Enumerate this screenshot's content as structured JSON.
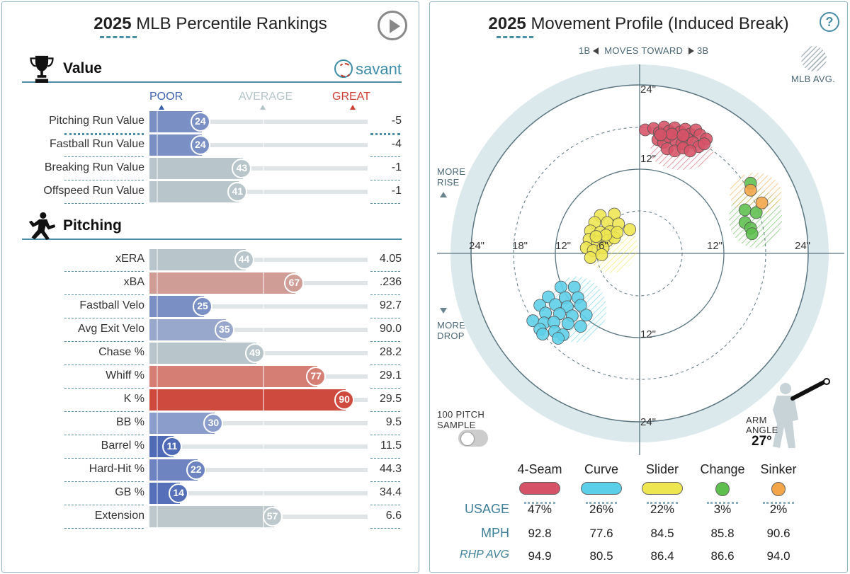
{
  "left": {
    "title_year": "2025",
    "title_rest": "MLB Percentile Rankings",
    "value_section": {
      "label": "Value",
      "brand": "savant",
      "scale": {
        "poor": "POOR",
        "average": "AVERAGE",
        "great": "GREAT"
      },
      "rows": [
        {
          "label": "Pitching Run Value",
          "percentile": 24,
          "value": "-5",
          "color": "#7a8fc4"
        },
        {
          "label": "Fastball Run Value",
          "percentile": 24,
          "value": "-4",
          "color": "#7a8fc4"
        },
        {
          "label": "Breaking Run Value",
          "percentile": 43,
          "value": "-1",
          "color": "#b8c6cc"
        },
        {
          "label": "Offspeed Run Value",
          "percentile": 41,
          "value": "-1",
          "color": "#b8c6cc"
        }
      ]
    },
    "pitching_section": {
      "label": "Pitching",
      "rows": [
        {
          "label": "xERA",
          "percentile": 44,
          "value": "4.05",
          "color": "#b8c6cc"
        },
        {
          "label": "xBA",
          "percentile": 67,
          "value": ".236",
          "color": "#cf9c96"
        },
        {
          "label": "Fastball Velo",
          "percentile": 25,
          "value": "92.7",
          "color": "#7a8fc4"
        },
        {
          "label": "Avg Exit Velo",
          "percentile": 35,
          "value": "90.0",
          "color": "#98a8cc"
        },
        {
          "label": "Chase %",
          "percentile": 49,
          "value": "28.2",
          "color": "#b8c6cc"
        },
        {
          "label": "Whiff %",
          "percentile": 77,
          "value": "29.1",
          "color": "#d57e74"
        },
        {
          "label": "K %",
          "percentile": 90,
          "value": "29.5",
          "color": "#cf4a3e"
        },
        {
          "label": "BB %",
          "percentile": 30,
          "value": "9.5",
          "color": "#8b9ecb"
        },
        {
          "label": "Barrel %",
          "percentile": 11,
          "value": "11.5",
          "color": "#4f6bb5"
        },
        {
          "label": "Hard-Hit %",
          "percentile": 22,
          "value": "44.3",
          "color": "#6e84c0"
        },
        {
          "label": "GB %",
          "percentile": 14,
          "value": "34.4",
          "color": "#5570b8"
        },
        {
          "label": "Extension",
          "percentile": 57,
          "value": "6.6",
          "color": "#bcc8cb"
        }
      ]
    }
  },
  "right": {
    "title_year": "2025",
    "title_rest": "Movement Profile (Induced Break)",
    "help": "?",
    "direction": {
      "left": "1B",
      "middle": "MOVES TOWARD",
      "right": "3B"
    },
    "mlb_avg": "MLB AVG.",
    "more_rise": [
      "MORE",
      "RISE"
    ],
    "more_drop": [
      "MORE",
      "DROP"
    ],
    "ring_labels": {
      "top_24": "24\"",
      "top_12": "12\"",
      "bottom_12": "12\"",
      "bottom_24": "24\"",
      "left_24": "24\"",
      "left_18": "18\"",
      "left_12": "12\"",
      "left_6": "6\"",
      "right_12": "12\"",
      "right_24": "24\""
    },
    "pitch_sample": [
      "100 PITCH",
      "SAMPLE"
    ],
    "arm_angle_label": [
      "ARM",
      "ANGLE"
    ],
    "arm_angle_value": "27°",
    "pitches": [
      {
        "name": "4-Seam",
        "color": "#d65266",
        "usage": "47%",
        "mph": "92.8",
        "rhp_avg": "94.9"
      },
      {
        "name": "Curve",
        "color": "#5ccfe8",
        "usage": "26%",
        "mph": "77.6",
        "rhp_avg": "80.5"
      },
      {
        "name": "Slider",
        "color": "#eee650",
        "usage": "22%",
        "mph": "84.5",
        "rhp_avg": "86.4"
      },
      {
        "name": "Change",
        "color": "#5dbf4d",
        "usage": "3%",
        "mph": "85.8",
        "rhp_avg": "86.6"
      },
      {
        "name": "Sinker",
        "color": "#f3a548",
        "usage": "2%",
        "mph": "90.6",
        "rhp_avg": "94.0"
      }
    ],
    "table_headers": {
      "usage": "USAGE",
      "mph": "MPH",
      "rhp_avg": "RHP AVG"
    },
    "chart_data": {
      "type": "scatter",
      "xlabel": "",
      "ylabel": "",
      "xlim": [
        -24,
        24
      ],
      "ylim": [
        -24,
        24
      ],
      "series": [
        {
          "name": "4-Seam",
          "color": "#d65266",
          "avg_ellipse": {
            "cx": 6,
            "cy": 14.5,
            "rx": 4.5,
            "ry": 2.6
          },
          "points": [
            [
              0.8,
              17.6
            ],
            [
              2.0,
              17.8
            ],
            [
              2.8,
              17.2
            ],
            [
              3.5,
              18.0
            ],
            [
              4.2,
              17.4
            ],
            [
              5.0,
              17.9
            ],
            [
              5.8,
              17.3
            ],
            [
              6.5,
              17.7
            ],
            [
              7.2,
              17.0
            ],
            [
              8.0,
              17.6
            ],
            [
              8.6,
              16.9
            ],
            [
              9.5,
              16.3
            ],
            [
              2.6,
              16.2
            ],
            [
              3.4,
              15.8
            ],
            [
              4.2,
              16.6
            ],
            [
              5.2,
              16.0
            ],
            [
              6.0,
              15.6
            ],
            [
              6.8,
              16.3
            ],
            [
              7.6,
              15.8
            ],
            [
              8.4,
              15.2
            ],
            [
              3.9,
              14.9
            ],
            [
              5.0,
              14.6
            ],
            [
              6.2,
              15.0
            ],
            [
              7.2,
              14.6
            ],
            [
              9.2,
              15.6
            ],
            [
              4.6,
              17.0
            ],
            [
              6.2,
              16.8
            ],
            [
              3.0,
              16.9
            ]
          ]
        },
        {
          "name": "Curve",
          "color": "#5ccfe8",
          "avg_ellipse": {
            "cx": -9,
            "cy": -8,
            "rx": 4.3,
            "ry": 4.7
          },
          "points": [
            [
              -11.2,
              -4.8
            ],
            [
              -9.3,
              -4.8
            ],
            [
              -13.0,
              -6.2
            ],
            [
              -10.6,
              -6.3
            ],
            [
              -8.8,
              -6.3
            ],
            [
              -14.2,
              -7.4
            ],
            [
              -12.0,
              -7.3
            ],
            [
              -10.3,
              -7.6
            ],
            [
              -8.4,
              -7.4
            ],
            [
              -13.4,
              -8.5
            ],
            [
              -11.4,
              -8.6
            ],
            [
              -9.6,
              -8.9
            ],
            [
              -7.6,
              -8.8
            ],
            [
              -15.2,
              -9.6
            ],
            [
              -13.6,
              -9.9
            ],
            [
              -12.2,
              -9.8
            ],
            [
              -10.2,
              -10.0
            ],
            [
              -8.4,
              -10.4
            ],
            [
              -14.2,
              -10.8
            ],
            [
              -12.1,
              -11.1
            ],
            [
              -10.9,
              -11.6
            ],
            [
              -11.6,
              -12.1
            ],
            [
              -13.8,
              -11.5
            ]
          ]
        },
        {
          "name": "Slider",
          "color": "#eee650",
          "avg_ellipse": {
            "cx": -4,
            "cy": 1,
            "rx": 3.7,
            "ry": 3.8
          },
          "points": [
            [
              -5.6,
              5.4
            ],
            [
              -3.6,
              5.6
            ],
            [
              -6.4,
              4.4
            ],
            [
              -4.6,
              4.4
            ],
            [
              -3.0,
              4.2
            ],
            [
              -7.0,
              3.2
            ],
            [
              -5.6,
              3.0
            ],
            [
              -4.2,
              3.1
            ],
            [
              -1.4,
              3.4
            ],
            [
              -7.2,
              2.0
            ],
            [
              -6.0,
              1.6
            ],
            [
              -4.6,
              1.8
            ],
            [
              -3.6,
              2.2
            ],
            [
              -7.6,
              0.8
            ],
            [
              -6.6,
              0.4
            ],
            [
              -5.2,
              0.8
            ],
            [
              -7.0,
              -0.6
            ],
            [
              -5.4,
              -0.2
            ],
            [
              -4.8,
              2.6
            ],
            [
              -6.2,
              2.4
            ],
            [
              -3.2,
              3.0
            ]
          ]
        },
        {
          "name": "Change",
          "color": "#5dbf4d",
          "avg_ellipse": {
            "cx": 16.5,
            "cy": 5,
            "rx": 3.8,
            "ry": 4.2
          },
          "points": [
            [
              15.8,
              10.0
            ],
            [
              15.0,
              6.2
            ],
            [
              16.6,
              5.8
            ],
            [
              15.0,
              4.4
            ],
            [
              15.8,
              3.6
            ],
            [
              16.0,
              2.8
            ]
          ]
        },
        {
          "name": "Sinker",
          "color": "#f3a548",
          "avg_ellipse": {
            "cx": 16.5,
            "cy": 8.5,
            "rx": 3.7,
            "ry": 3.0
          },
          "points": [
            [
              15.8,
              9.0
            ],
            [
              17.4,
              7.2
            ]
          ]
        }
      ]
    }
  }
}
